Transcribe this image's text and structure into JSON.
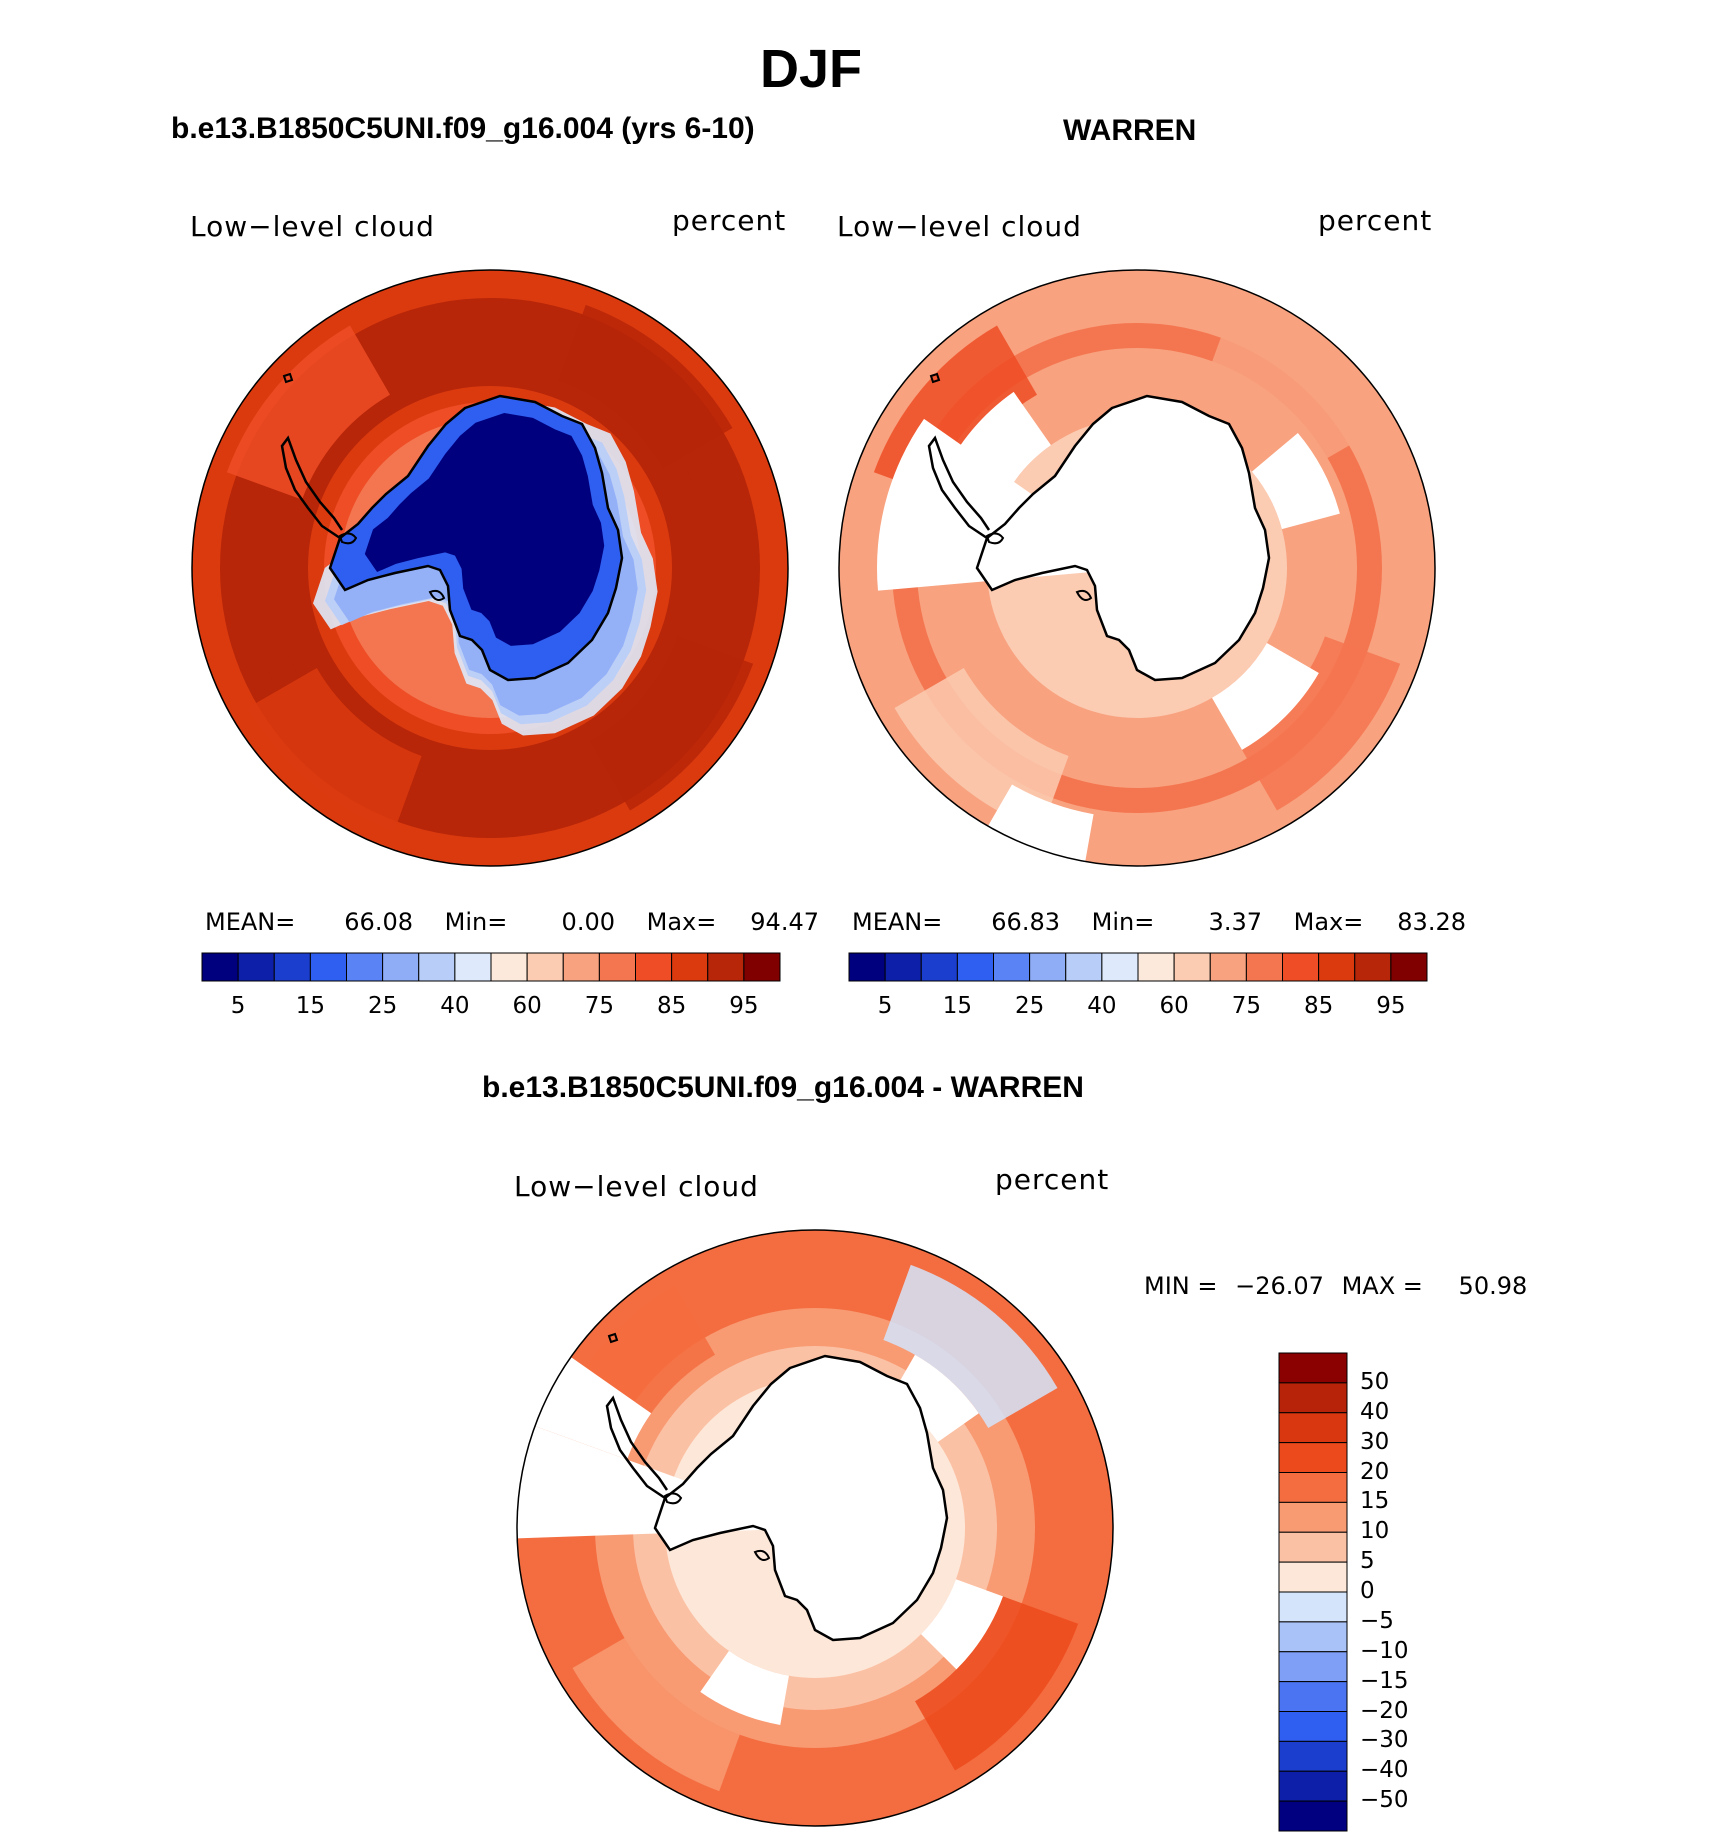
{
  "page_title": "DJF",
  "colors": {
    "abs_levels": [
      "#00007f",
      "#0d1fa8",
      "#1b3ece",
      "#2f5ff0",
      "#5a84f5",
      "#8fadf7",
      "#b8cdf8",
      "#deeafb",
      "#fde9dc",
      "#fbcbb2",
      "#f8a27f",
      "#f47650",
      "#ee4d26",
      "#db3a0f",
      "#b72608",
      "#800000"
    ],
    "diff_levels": [
      "#000080",
      "#0d1fa8",
      "#1b3ece",
      "#2f5ff0",
      "#4a74f2",
      "#7e9ff5",
      "#a9c2f8",
      "#d4e4fb",
      "#fde7d8",
      "#fbc1a4",
      "#f89a72",
      "#f46d40",
      "#ec4a1c",
      "#d83710",
      "#b62308",
      "#8b0000"
    ],
    "outline": "#000000"
  },
  "chart_data": [
    {
      "type": "heatmap",
      "projection": "south-polar-stereographic",
      "panel_title": "b.e13.B1850C5UNI.f09_g16.004 (yrs 6-10)",
      "left_label": "Low−level cloud",
      "right_label": "percent",
      "stats": {
        "mean_label": "MEAN=",
        "mean": "66.08",
        "min_label": "Min=",
        "min": "0.00",
        "max_label": "Max=",
        "max": "94.47"
      },
      "colorbar": {
        "orientation": "horizontal",
        "tick_labels": [
          "5",
          "15",
          "25",
          "40",
          "60",
          "75",
          "85",
          "95"
        ]
      },
      "field": {
        "ocean_band_levels": [
          13,
          14,
          14,
          14,
          14,
          13,
          12,
          11
        ],
        "interior_level": 0,
        "coast_gradient": [
          1,
          3,
          5,
          6,
          7
        ]
      }
    },
    {
      "type": "heatmap",
      "projection": "south-polar-stereographic",
      "panel_title": "WARREN",
      "left_label": "Low−level cloud",
      "right_label": "percent",
      "stats": {
        "mean_label": "MEAN=",
        "mean": "66.83",
        "min_label": "Min=",
        "min": "3.37",
        "max_label": "Max=",
        "max": "83.28"
      },
      "colorbar": {
        "orientation": "horizontal",
        "tick_labels": [
          "5",
          "15",
          "25",
          "40",
          "60",
          "75",
          "85",
          "95"
        ]
      },
      "field": {
        "ocean_band_levels": [
          10,
          10,
          11,
          10,
          10,
          10,
          10,
          9
        ],
        "interior_level": null,
        "missing_sectors": true
      }
    },
    {
      "type": "heatmap",
      "projection": "south-polar-stereographic",
      "panel_title": "b.e13.B1850C5UNI.f09_g16.004 - WARREN",
      "left_label": "Low−level cloud",
      "right_label": "percent",
      "stats": {
        "min_label": "MIN =",
        "min": "−26.07",
        "max_label": "MAX =",
        "max": "50.98"
      },
      "colorbar": {
        "orientation": "vertical",
        "tick_labels": [
          "50",
          "40",
          "30",
          "20",
          "15",
          "10",
          "5",
          "0",
          "−5",
          "−10",
          "−15",
          "−20",
          "−30",
          "−40",
          "−50"
        ]
      },
      "field": {
        "ocean_band_levels": [
          11,
          11,
          11,
          10,
          10,
          9,
          9,
          8
        ],
        "interior_level": null,
        "missing_sectors": true
      }
    }
  ]
}
